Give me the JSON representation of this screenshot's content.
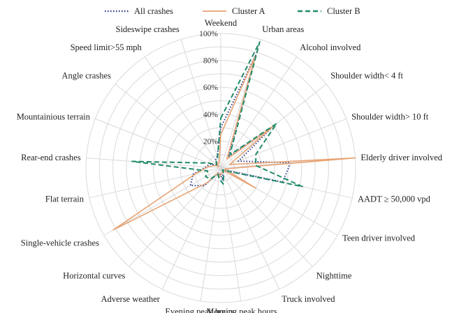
{
  "chart_data": {
    "type": "radar",
    "title": "",
    "axes": [
      "Weekend",
      "Urban areas",
      "Alcohol involved",
      "Shoulder width< 4 ft",
      "Shoulder width> 10 ft",
      "Elderly driver involved",
      "AADT ≥ 50,000 vpd",
      "Teen driver involved",
      "Nighttime",
      "Truck involved",
      "Morning peak hours",
      "Evening peak hours",
      "Adverse weather",
      "Horizontal curves",
      "Single-vehicle crashes",
      "Flat terrain",
      "Rear-end crashes",
      "Mountainious terrain",
      "Angle crashes",
      "Speed limit>55 mph",
      "Sideswipe crashes"
    ],
    "rlim": [
      0,
      100
    ],
    "ticks": [
      0,
      20,
      40,
      60,
      80,
      100
    ],
    "tick_labels": [
      "0%",
      "20%",
      "40%",
      "60%",
      "80%",
      "100%"
    ],
    "grid": true,
    "legend_position": "top",
    "series": [
      {
        "name": "All crashes",
        "color": "#2f3d8f",
        "dash": "dotted",
        "values": [
          30,
          88,
          10,
          50,
          14,
          52,
          47,
          3,
          2,
          4,
          9,
          4,
          4,
          18,
          26,
          21,
          11,
          8,
          3,
          7,
          9
        ]
      },
      {
        "name": "Cluster A",
        "color": "#e7a373",
        "dash": "solid",
        "values": [
          25,
          87,
          8,
          50,
          7,
          100,
          3,
          30,
          2,
          3,
          4,
          7,
          4,
          15,
          92,
          19,
          10,
          5,
          2,
          5,
          4
        ]
      },
      {
        "name": "Cluster B",
        "color": "#1e8b68",
        "dash": "dashed",
        "values": [
          37,
          98,
          12,
          53,
          28,
          26,
          62,
          4,
          2,
          5,
          12,
          8,
          5,
          11,
          13,
          10,
          66,
          10,
          4,
          6,
          8
        ]
      }
    ]
  }
}
